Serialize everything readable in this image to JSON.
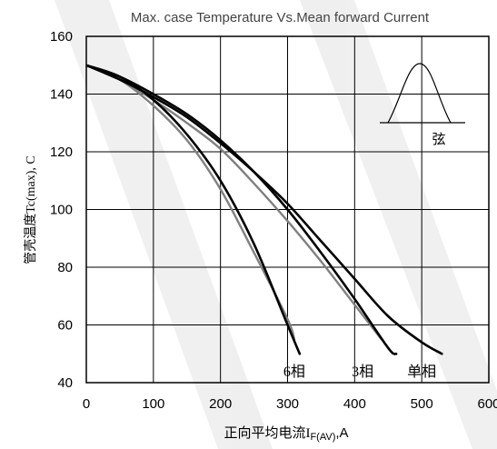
{
  "chart_data": {
    "type": "line",
    "title": "Max. case Temperature Vs.Mean forward Current",
    "ylabel": "管壳温度Tc(max), C",
    "xlabel_prefix": "正向平均电流I",
    "xlabel_sub": "F(AV)",
    "xlabel_suffix": ",A",
    "xlim": [
      0,
      600
    ],
    "ylim": [
      40,
      160
    ],
    "x_ticks": [
      0,
      100,
      200,
      300,
      400,
      500,
      600
    ],
    "y_ticks": [
      40,
      60,
      80,
      100,
      120,
      140,
      160
    ],
    "x_tick_labels": [
      "0",
      "100",
      "200",
      "300",
      "400",
      "500",
      "600"
    ],
    "y_tick_labels": [
      "40",
      "60",
      "80",
      "100",
      "120",
      "140",
      "160"
    ],
    "grid": true,
    "series": [
      {
        "name": "6相",
        "color": "#000000",
        "points": [
          [
            0,
            150
          ],
          [
            50,
            146
          ],
          [
            100,
            138
          ],
          [
            150,
            126
          ],
          [
            200,
            110
          ],
          [
            250,
            88
          ],
          [
            300,
            60
          ],
          [
            318,
            50
          ]
        ]
      },
      {
        "name": "3相",
        "color": "#000000",
        "points": [
          [
            0,
            150
          ],
          [
            50,
            146
          ],
          [
            100,
            140
          ],
          [
            150,
            133
          ],
          [
            200,
            124
          ],
          [
            250,
            113
          ],
          [
            300,
            100
          ],
          [
            350,
            85
          ],
          [
            400,
            69
          ],
          [
            450,
            52
          ],
          [
            462,
            50
          ]
        ]
      },
      {
        "name": "单相",
        "color": "#000000",
        "points": [
          [
            0,
            150
          ],
          [
            50,
            145
          ],
          [
            100,
            139
          ],
          [
            150,
            132
          ],
          [
            200,
            123
          ],
          [
            250,
            113
          ],
          [
            300,
            102
          ],
          [
            350,
            89
          ],
          [
            400,
            76
          ],
          [
            450,
            63
          ],
          [
            500,
            54
          ],
          [
            530,
            50
          ]
        ]
      },
      {
        "name": "",
        "color": "#808080",
        "points": [
          [
            0,
            150
          ],
          [
            50,
            145
          ],
          [
            100,
            136
          ],
          [
            150,
            124
          ],
          [
            200,
            107
          ],
          [
            250,
            85
          ],
          [
            300,
            62
          ],
          [
            310,
            55
          ]
        ]
      },
      {
        "name": "",
        "color": "#808080",
        "points": [
          [
            0,
            150
          ],
          [
            50,
            145
          ],
          [
            100,
            138
          ],
          [
            150,
            130
          ],
          [
            200,
            121
          ],
          [
            250,
            109
          ],
          [
            300,
            96
          ],
          [
            350,
            82
          ],
          [
            400,
            67
          ],
          [
            440,
            55
          ]
        ]
      }
    ],
    "curve_labels": [
      {
        "text": "6相",
        "x": 310,
        "y": 45
      },
      {
        "text": "3相",
        "x": 412,
        "y": 45
      },
      {
        "text": "单相",
        "x": 500,
        "y": 45
      }
    ],
    "inset_label": "弦"
  }
}
